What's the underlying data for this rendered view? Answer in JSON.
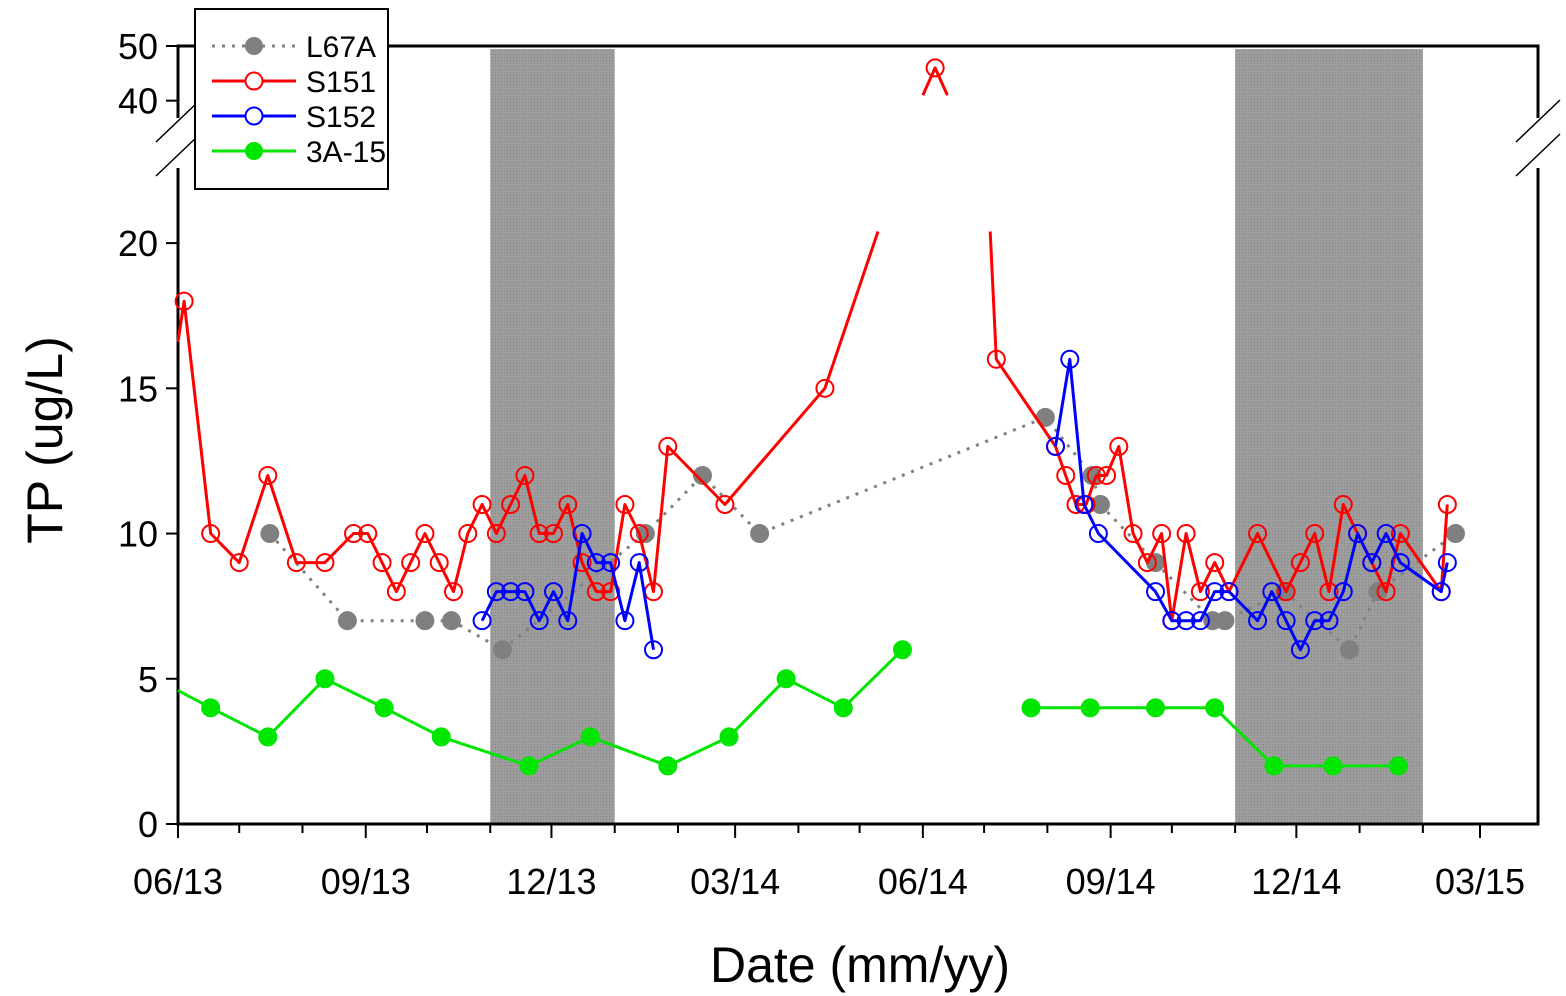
{
  "chart_data": {
    "type": "line",
    "xlabel": "Date (mm/yy)",
    "ylabel": "TP (ug/L)",
    "x_tick_labels": [
      "06/13",
      "09/13",
      "12/13",
      "03/14",
      "06/14",
      "09/14",
      "12/14",
      "03/15"
    ],
    "x_tick_dates": [
      "2013-06-01",
      "2013-09-01",
      "2013-12-01",
      "2014-03-01",
      "2014-06-01",
      "2014-09-01",
      "2014-12-01",
      "2015-03-01"
    ],
    "y_tick_labels": [
      "0",
      "5",
      "10",
      "15",
      "20",
      "40",
      "50"
    ],
    "ylim_lower": [
      0,
      22
    ],
    "ylim_upper": [
      35,
      50
    ],
    "axis_break": true,
    "shaded_periods": [
      [
        "2013-11-01",
        "2014-01-01"
      ],
      [
        "2014-11-01",
        "2015-02-01"
      ]
    ],
    "legend_position": "top-left",
    "series": [
      {
        "name": "L67A",
        "color": "#808080",
        "style": "dotted",
        "marker": "filled-circle",
        "points": [
          [
            "2013-07-16",
            10
          ],
          [
            "2013-08-23",
            7
          ],
          [
            "2013-09-30",
            7
          ],
          [
            "2013-10-13",
            7
          ],
          [
            "2013-11-07",
            6
          ],
          [
            "2014-01-16",
            10
          ],
          [
            "2014-02-13",
            12
          ],
          [
            "2014-03-13",
            10
          ],
          [
            "2014-07-31",
            14
          ],
          [
            "2014-08-23",
            12
          ],
          [
            "2014-08-27",
            11
          ],
          [
            "2014-09-23",
            9
          ],
          [
            "2014-10-21",
            7
          ],
          [
            "2014-10-27",
            7
          ],
          [
            "2014-11-25",
            8
          ],
          [
            "2014-12-27",
            6
          ],
          [
            "2015-01-10",
            8
          ],
          [
            "2015-02-17",
            10
          ]
        ]
      },
      {
        "name": "S151",
        "color": "#ff0000",
        "style": "solid",
        "marker": "open-circle",
        "points": [
          [
            "2013-06-01",
            16.6
          ],
          [
            "2013-06-04",
            18
          ],
          [
            "2013-06-17",
            10
          ],
          [
            "2013-07-01",
            9
          ],
          [
            "2013-07-15",
            12
          ],
          [
            "2013-07-29",
            9
          ],
          [
            "2013-08-12",
            9
          ],
          [
            "2013-08-26",
            10
          ],
          [
            "2013-09-02",
            10
          ],
          [
            "2013-09-09",
            9
          ],
          [
            "2013-09-16",
            8
          ],
          [
            "2013-09-23",
            9
          ],
          [
            "2013-09-30",
            10
          ],
          [
            "2013-10-07",
            9
          ],
          [
            "2013-10-14",
            8
          ],
          [
            "2013-10-21",
            10
          ],
          [
            "2013-10-28",
            11
          ],
          [
            "2013-11-04",
            10
          ],
          [
            "2013-11-11",
            11
          ],
          [
            "2013-11-18",
            12
          ],
          [
            "2013-11-25",
            10
          ],
          [
            "2013-12-02",
            10
          ],
          [
            "2013-12-09",
            11
          ],
          [
            "2013-12-16",
            9
          ],
          [
            "2013-12-23",
            8
          ],
          [
            "2013-12-30",
            8
          ],
          [
            "2014-01-06",
            11
          ],
          [
            "2014-01-13",
            10
          ],
          [
            "2014-01-20",
            8
          ],
          [
            "2014-01-27",
            13
          ],
          [
            "2014-02-24",
            11
          ],
          [
            "2014-04-14",
            15
          ],
          [
            "2014-05-10",
            20.4
          ],
          null,
          [
            "2014-06-01",
            41
          ],
          [
            "2014-06-07",
            46
          ],
          [
            "2014-06-13",
            41
          ],
          null,
          [
            "2014-07-04",
            20.4
          ],
          [
            "2014-07-07",
            16
          ],
          [
            "2014-08-05",
            13
          ],
          [
            "2014-08-10",
            12
          ],
          [
            "2014-08-15",
            11
          ],
          [
            "2014-08-20",
            11
          ],
          [
            "2014-08-25",
            12
          ],
          [
            "2014-08-30",
            12
          ],
          [
            "2014-09-05",
            13
          ],
          [
            "2014-09-12",
            10
          ],
          [
            "2014-09-19",
            9
          ],
          [
            "2014-09-26",
            10
          ],
          [
            "2014-10-01",
            7
          ],
          [
            "2014-10-08",
            10
          ],
          [
            "2014-10-15",
            8
          ],
          [
            "2014-10-22",
            9
          ],
          [
            "2014-10-29",
            8
          ],
          [
            "2014-11-12",
            10
          ],
          [
            "2014-11-26",
            8
          ],
          [
            "2014-12-03",
            9
          ],
          [
            "2014-12-10",
            10
          ],
          [
            "2014-12-17",
            8
          ],
          [
            "2014-12-24",
            11
          ],
          [
            "2014-12-31",
            10
          ],
          [
            "2015-01-07",
            9
          ],
          [
            "2015-01-14",
            8
          ],
          [
            "2015-01-21",
            10
          ],
          [
            "2015-02-10",
            8
          ],
          [
            "2015-02-13",
            11
          ]
        ]
      },
      {
        "name": "S152",
        "color": "#0000ff",
        "style": "solid",
        "marker": "open-circle",
        "points": [
          [
            "2013-10-28",
            7
          ],
          [
            "2013-11-04",
            8
          ],
          [
            "2013-11-11",
            8
          ],
          [
            "2013-11-18",
            8
          ],
          [
            "2013-11-25",
            7
          ],
          [
            "2013-12-02",
            8
          ],
          [
            "2013-12-09",
            7
          ],
          [
            "2013-12-16",
            10
          ],
          [
            "2013-12-23",
            9
          ],
          [
            "2013-12-30",
            9
          ],
          [
            "2014-01-06",
            7
          ],
          [
            "2014-01-13",
            9
          ],
          [
            "2014-01-20",
            6
          ],
          null,
          [
            "2014-08-05",
            13
          ],
          [
            "2014-08-12",
            16
          ],
          [
            "2014-08-19",
            11
          ],
          [
            "2014-08-26",
            10
          ],
          [
            "2014-09-23",
            8
          ],
          [
            "2014-10-01",
            7
          ],
          [
            "2014-10-08",
            7
          ],
          [
            "2014-10-15",
            7
          ],
          [
            "2014-10-22",
            8
          ],
          [
            "2014-10-29",
            8
          ],
          [
            "2014-11-12",
            7
          ],
          [
            "2014-11-19",
            8
          ],
          [
            "2014-11-26",
            7
          ],
          [
            "2014-12-03",
            6
          ],
          [
            "2014-12-10",
            7
          ],
          [
            "2014-12-17",
            7
          ],
          [
            "2014-12-24",
            8
          ],
          [
            "2014-12-31",
            10
          ],
          [
            "2015-01-07",
            9
          ],
          [
            "2015-01-14",
            10
          ],
          [
            "2015-01-21",
            9
          ],
          [
            "2015-02-10",
            8
          ],
          [
            "2015-02-13",
            9
          ]
        ]
      },
      {
        "name": "3A-15",
        "color": "#00e600",
        "style": "solid",
        "marker": "filled-circle",
        "points": [
          [
            "2013-06-01",
            4.6
          ],
          [
            "2013-06-17",
            4
          ],
          [
            "2013-07-15",
            3
          ],
          [
            "2013-08-12",
            5
          ],
          [
            "2013-09-10",
            4
          ],
          [
            "2013-10-08",
            3
          ],
          [
            "2013-11-20",
            2
          ],
          [
            "2013-12-20",
            3
          ],
          [
            "2014-01-27",
            2
          ],
          [
            "2014-02-26",
            3
          ],
          [
            "2014-03-26",
            5
          ],
          [
            "2014-04-23",
            4
          ],
          [
            "2014-05-22",
            6
          ],
          null,
          [
            "2014-07-24",
            4
          ],
          [
            "2014-08-22",
            4
          ],
          [
            "2014-09-23",
            4
          ],
          [
            "2014-10-22",
            4
          ],
          [
            "2014-11-20",
            2
          ],
          [
            "2014-12-19",
            2
          ],
          [
            "2015-01-20",
            2
          ]
        ]
      }
    ]
  }
}
